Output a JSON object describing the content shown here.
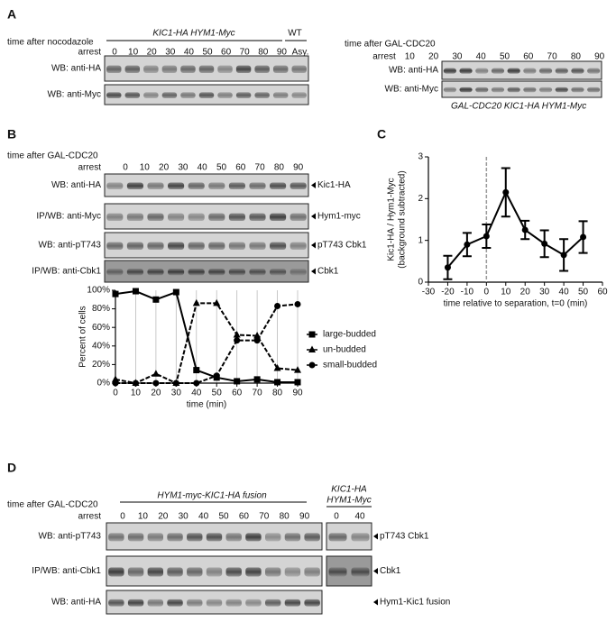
{
  "panel_labels": [
    "A",
    "B",
    "C",
    "D"
  ],
  "panel_a": {
    "left": {
      "time_label": "time after nocodazole",
      "arrest": "arrest",
      "strain": "KIC1-HA  HYM1-Myc",
      "wt": "WT",
      "lanes": [
        "0",
        "10",
        "20",
        "30",
        "40",
        "50",
        "60",
        "70",
        "80",
        "90",
        "Asy."
      ],
      "rows": [
        "WB: anti-HA",
        "WB: anti-Myc"
      ]
    },
    "right": {
      "time_label": "time after GAL-CDC20",
      "lanes": [
        "arrest",
        "10",
        "20",
        "30",
        "40",
        "50",
        "60",
        "70",
        "80",
        "90"
      ],
      "rows": [
        "WB: anti-HA",
        "WB: anti-Myc"
      ],
      "strain": "GAL-CDC20 KIC1-HA HYM1-Myc"
    }
  },
  "panel_b": {
    "time_label": "time after GAL-CDC20",
    "arrest": "arrest",
    "lanes": [
      "0",
      "10",
      "20",
      "30",
      "40",
      "50",
      "60",
      "70",
      "80",
      "90"
    ],
    "rows": [
      {
        "label": "WB: anti-HA",
        "band": "Kic1-HA"
      },
      {
        "label": "IP/WB: anti-Myc",
        "band": "Hym1-myc"
      },
      {
        "label": "WB: anti-pT743",
        "band": "pT743 Cbk1"
      },
      {
        "label": "IP/WB: anti-Cbk1",
        "band": "Cbk1"
      }
    ]
  },
  "panel_d": {
    "time_label": "time after GAL-CDC20",
    "arrest": "arrest",
    "strain": "HYM1-myc-KIC1-HA fusion",
    "lanes": [
      "0",
      "10",
      "20",
      "30",
      "40",
      "50",
      "60",
      "70",
      "80",
      "90"
    ],
    "control_strain": [
      "KIC1-HA",
      "HYM1-Myc"
    ],
    "control_lanes": [
      "0",
      "40"
    ],
    "rows": [
      {
        "label": "WB: anti-pT743",
        "band": "pT743 Cbk1"
      },
      {
        "label": "IP/WB: anti-Cbk1",
        "band": "Cbk1"
      },
      {
        "label": "WB: anti-HA",
        "band": "Hym1-Kic1 fusion"
      }
    ]
  },
  "chart_data": [
    {
      "type": "line",
      "xlabel": "time (min)",
      "ylabel": "Percent of cells",
      "x": [
        0,
        10,
        20,
        30,
        40,
        50,
        60,
        70,
        80,
        90
      ],
      "xlim": [
        0,
        90
      ],
      "xticks": [
        0,
        10,
        20,
        30,
        40,
        50,
        60,
        70,
        80,
        90
      ],
      "xgrid": true,
      "ylim": [
        0,
        100
      ],
      "yticks": [
        {
          "value": 0,
          "label": "0%"
        },
        {
          "value": 20,
          "label": "20%"
        },
        {
          "value": 40,
          "label": "40%"
        },
        {
          "value": 60,
          "label": "60%"
        },
        {
          "value": 80,
          "label": "80%"
        },
        {
          "value": 100,
          "label": "100%"
        }
      ],
      "series": [
        {
          "name": "large-budded",
          "color": "#000000",
          "marker": "square",
          "dashed": false,
          "values": [
            96,
            99,
            90,
            98,
            14,
            6,
            2,
            4,
            1,
            1
          ]
        },
        {
          "name": "un-budded",
          "color": "#000000",
          "marker": "triangle",
          "dashed": true,
          "values": [
            4,
            0,
            10,
            0,
            86,
            86,
            52,
            51,
            16,
            14
          ]
        },
        {
          "name": "small-budded",
          "color": "#000000",
          "marker": "circle",
          "dashed": true,
          "values": [
            0,
            0,
            0,
            0,
            0,
            8,
            46,
            46,
            83,
            85
          ]
        }
      ]
    },
    {
      "type": "line",
      "xlabel": "time relative to separation, t=0  (min)",
      "ylabel": [
        "Kic1-HA / Hym1-Myc",
        "(background subtracted)"
      ],
      "x": [
        -20,
        -10,
        0,
        10,
        20,
        30,
        40,
        50
      ],
      "values": [
        0.35,
        0.9,
        1.1,
        2.15,
        1.25,
        0.92,
        0.65,
        1.08
      ],
      "errors": [
        0.28,
        0.28,
        0.28,
        0.58,
        0.22,
        0.32,
        0.38,
        0.38
      ],
      "color": "#000000",
      "marker": "circle",
      "vline": 0,
      "xlim": [
        -30,
        60
      ],
      "xticks": [
        -30,
        -20,
        -10,
        0,
        10,
        20,
        30,
        40,
        50,
        60
      ],
      "ylim": [
        0,
        3
      ],
      "yticks": [
        0,
        1,
        2,
        3
      ]
    }
  ]
}
